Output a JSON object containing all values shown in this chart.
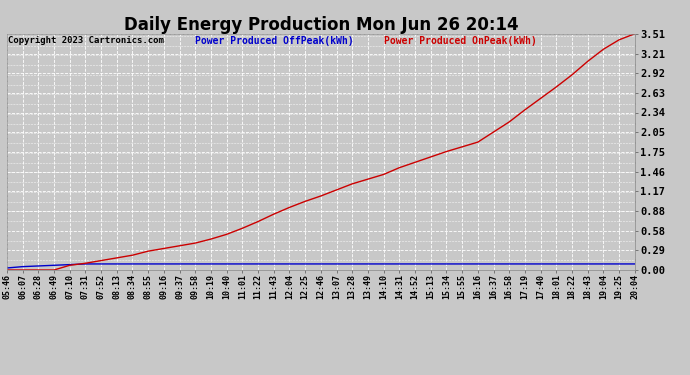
{
  "title": "Daily Energy Production Mon Jun 26 20:14",
  "copyright": "Copyright 2023 Cartronics.com",
  "legend_offpeak": "Power Produced OffPeak(kWh)",
  "legend_onpeak": "Power Produced OnPeak(kWh)",
  "offpeak_color": "#0000cc",
  "onpeak_color": "#cc0000",
  "background_color": "#c8c8c8",
  "plot_bg_color": "#c8c8c8",
  "title_color": "#000000",
  "grid_color": "#ffffff",
  "yticks": [
    0.0,
    0.29,
    0.58,
    0.88,
    1.17,
    1.46,
    1.75,
    2.05,
    2.34,
    2.63,
    2.92,
    3.21,
    3.51
  ],
  "xtick_labels": [
    "05:46",
    "06:07",
    "06:28",
    "06:49",
    "07:10",
    "07:31",
    "07:52",
    "08:13",
    "08:34",
    "08:55",
    "09:16",
    "09:37",
    "09:58",
    "10:19",
    "10:40",
    "11:01",
    "11:22",
    "11:43",
    "12:04",
    "12:25",
    "12:46",
    "13:07",
    "13:28",
    "13:49",
    "14:10",
    "14:31",
    "14:52",
    "15:13",
    "15:34",
    "15:55",
    "16:16",
    "16:37",
    "16:58",
    "17:19",
    "17:40",
    "18:01",
    "18:22",
    "18:43",
    "19:04",
    "19:25",
    "20:04"
  ],
  "offpeak_y": [
    0.03,
    0.05,
    0.06,
    0.07,
    0.08,
    0.09,
    0.09,
    0.09,
    0.09,
    0.09,
    0.09,
    0.09,
    0.09,
    0.09,
    0.09,
    0.09,
    0.09,
    0.09,
    0.09,
    0.09,
    0.09,
    0.09,
    0.09,
    0.09,
    0.09,
    0.09,
    0.09,
    0.09,
    0.09,
    0.09,
    0.09,
    0.09,
    0.09,
    0.09,
    0.09,
    0.09,
    0.09,
    0.09,
    0.09,
    0.09,
    0.09
  ],
  "onpeak_y": [
    0.0,
    0.0,
    0.0,
    0.0,
    0.07,
    0.1,
    0.14,
    0.18,
    0.22,
    0.28,
    0.32,
    0.36,
    0.4,
    0.46,
    0.53,
    0.62,
    0.72,
    0.83,
    0.93,
    1.02,
    1.1,
    1.19,
    1.28,
    1.35,
    1.42,
    1.52,
    1.6,
    1.68,
    1.76,
    1.83,
    1.9,
    2.05,
    2.2,
    2.38,
    2.55,
    2.72,
    2.9,
    3.1,
    3.28,
    3.42,
    3.51
  ],
  "ylim": [
    0.0,
    3.51
  ],
  "line_width": 1.0,
  "title_fontsize": 12,
  "tick_fontsize": 7.5,
  "xtick_fontsize": 6.0
}
